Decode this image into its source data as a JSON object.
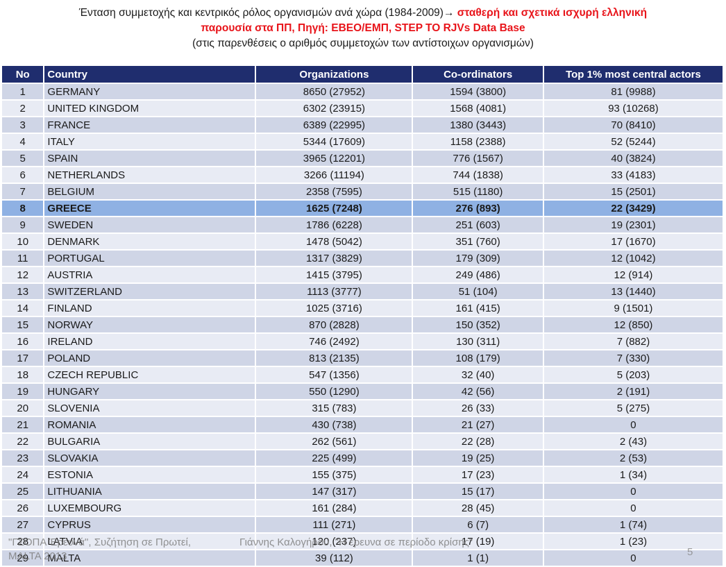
{
  "title": {
    "line1_black": "Ένταση συμμετοχής και κεντρικός ρόλος οργανισμών ανά χώρα (1984-2009)",
    "arrow": "→",
    "line1_red": " σταθερή και σχετικά ισχυρή ελληνική",
    "line2_red": "παρουσία στα ΠΠ, Πηγή: ΕΒΕΟ/ΕΜΠ, STEP TO RJVs Data Base",
    "line3": "(στις παρενθέσεις ο αριθμός συμμετοχών των αντίστοιχων οργανισμών)"
  },
  "table": {
    "headers": {
      "no": "No",
      "country": "Country",
      "organizations": "Organizations",
      "coordinators": "Co-ordinators",
      "top": "Top 1% most central actors"
    },
    "highlight_row": 7,
    "rows": [
      {
        "no": "1",
        "country": "GERMANY",
        "org": "8650 (27952)",
        "coord": "1594 (3800)",
        "top": "81 (9988)"
      },
      {
        "no": "2",
        "country": "UNITED KINGDOM",
        "org": "6302 (23915)",
        "coord": "1568 (4081)",
        "top": "93 (10268)"
      },
      {
        "no": "3",
        "country": "FRANCE",
        "org": "6389 (22995)",
        "coord": "1380 (3443)",
        "top": "70 (8410)"
      },
      {
        "no": "4",
        "country": "ITALY",
        "org": "5344 (17609)",
        "coord": "1158 (2388)",
        "top": "52 (5244)"
      },
      {
        "no": "5",
        "country": "SPAIN",
        "org": "3965 (12201)",
        "coord": "776 (1567)",
        "top": "40 (3824)"
      },
      {
        "no": "6",
        "country": "NETHERLANDS",
        "org": "3266 (11194)",
        "coord": "744 (1838)",
        "top": "33 (4183)"
      },
      {
        "no": "7",
        "country": "BELGIUM",
        "org": "2358 (7595)",
        "coord": "515 (1180)",
        "top": "15 (2501)"
      },
      {
        "no": "8",
        "country": "GREECE",
        "org": "1625 (7248)",
        "coord": "276 (893)",
        "top": "22 (3429)"
      },
      {
        "no": "9",
        "country": "SWEDEN",
        "org": "1786 (6228)",
        "coord": "251 (603)",
        "top": "19 (2301)"
      },
      {
        "no": "10",
        "country": "DENMARK",
        "org": "1478 (5042)",
        "coord": "351 (760)",
        "top": "17 (1670)"
      },
      {
        "no": "11",
        "country": "PORTUGAL",
        "org": "1317 (3829)",
        "coord": "179 (309)",
        "top": "12 (1042)"
      },
      {
        "no": "12",
        "country": "AUSTRIA",
        "org": "1415 (3795)",
        "coord": "249 (486)",
        "top": "12 (914)"
      },
      {
        "no": "13",
        "country": "SWITZERLAND",
        "org": "1113 (3777)",
        "coord": "51 (104)",
        "top": "13 (1440)"
      },
      {
        "no": "14",
        "country": "FINLAND",
        "org": "1025 (3716)",
        "coord": "161 (415)",
        "top": "9 (1501)"
      },
      {
        "no": "15",
        "country": "NORWAY",
        "org": "870 (2828)",
        "coord": "150 (352)",
        "top": "12 (850)"
      },
      {
        "no": "16",
        "country": "IRELAND",
        "org": "746 (2492)",
        "coord": "130 (311)",
        "top": "7 (882)"
      },
      {
        "no": "17",
        "country": "POLAND",
        "org": "813 (2135)",
        "coord": "108 (179)",
        "top": "7 (330)"
      },
      {
        "no": "18",
        "country": "CZECH REPUBLIC",
        "org": "547 (1356)",
        "coord": "32 (40)",
        "top": "5 (203)"
      },
      {
        "no": "19",
        "country": "HUNGARY",
        "org": "550 (1290)",
        "coord": "42 (56)",
        "top": "2 (191)"
      },
      {
        "no": "20",
        "country": "SLOVENIA",
        "org": "315 (783)",
        "coord": "26 (33)",
        "top": "5 (275)"
      },
      {
        "no": "21",
        "country": "ROMANIA",
        "org": "430 (738)",
        "coord": "21 (27)",
        "top": "0"
      },
      {
        "no": "22",
        "country": "BULGARIA",
        "org": "262 (561)",
        "coord": "22 (28)",
        "top": "2 (43)"
      },
      {
        "no": "23",
        "country": "SLOVAKIA",
        "org": "225 (499)",
        "coord": "19 (25)",
        "top": "2 (53)"
      },
      {
        "no": "24",
        "country": "ESTONIA",
        "org": "155 (375)",
        "coord": "17 (23)",
        "top": "1 (34)"
      },
      {
        "no": "25",
        "country": "LITHUANIA",
        "org": "147 (317)",
        "coord": "15 (17)",
        "top": "0"
      },
      {
        "no": "26",
        "country": "LUXEMBOURG",
        "org": "161 (284)",
        "coord": "28 (45)",
        "top": "0"
      },
      {
        "no": "27",
        "country": "CYPRUS",
        "org": "111 (271)",
        "coord": "6 (7)",
        "top": "1 (74)"
      },
      {
        "no": "28",
        "country": "LATVIA",
        "org": "120 (237)",
        "coord": "17 (19)",
        "top": "1 (23)"
      },
      {
        "no": "29",
        "country": "MALTA",
        "org": "39 (112)",
        "coord": "1 (1)",
        "top": "0"
      }
    ]
  },
  "footer": {
    "left": "\"ΓΣΟΠΑ Έρευνά\", Συζήτηση σε Πρωτεί, MALTA 2013",
    "middle": "Γιάννης Καλογήρου, \"Η έρευνα σε περίοδο κρίσης\"",
    "page_number": "5"
  },
  "colors": {
    "header_bg": "#1f2d6e",
    "row_odd": "#cfd5e6",
    "row_even": "#e8ebf4",
    "highlight": "#8fb1e3",
    "title_red": "#e8141a"
  }
}
